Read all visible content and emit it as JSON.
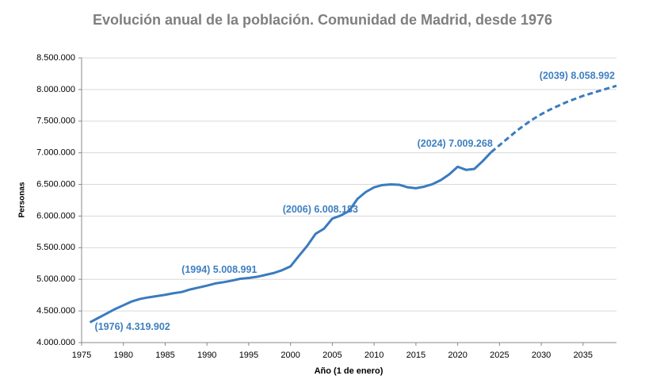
{
  "chart_data": {
    "type": "line",
    "title": "Evolución anual de la población. Comunidad de Madrid, desde 1976",
    "x_label": "Año (1 de enero)",
    "y_label": "Personas",
    "xlim": [
      1975,
      2039
    ],
    "xticks": [
      1975,
      1980,
      1985,
      1990,
      1995,
      2000,
      2005,
      2010,
      2015,
      2020,
      2025,
      2030,
      2035
    ],
    "ylim": [
      4000000,
      8500000
    ],
    "yticks": [
      {
        "value": 4000000,
        "label": "4.000.000"
      },
      {
        "value": 4500000,
        "label": "4.500.000"
      },
      {
        "value": 5000000,
        "label": "5.000.000"
      },
      {
        "value": 5500000,
        "label": "5.500.000"
      },
      {
        "value": 6000000,
        "label": "6.000.000"
      },
      {
        "value": 6500000,
        "label": "6.500.000"
      },
      {
        "value": 7000000,
        "label": "7.000.000"
      },
      {
        "value": 7500000,
        "label": "7.500.000"
      },
      {
        "value": 8000000,
        "label": "8.000.000"
      },
      {
        "value": 8500000,
        "label": "8.500.000"
      }
    ],
    "grid": true,
    "series": [
      {
        "color": "#3a7bbf",
        "style": "solid",
        "x": [
          1976,
          1977,
          1978,
          1979,
          1980,
          1981,
          1982,
          1983,
          1984,
          1985,
          1986,
          1987,
          1988,
          1989,
          1990,
          1991,
          1992,
          1993,
          1994,
          1995,
          1996,
          1997,
          1998,
          1999,
          2000,
          2001,
          2002,
          2003,
          2004,
          2005,
          2006,
          2007,
          2008,
          2009,
          2010,
          2011,
          2012,
          2013,
          2014,
          2015,
          2016,
          2017,
          2018,
          2019,
          2020,
          2021,
          2022,
          2023,
          2024
        ],
        "values": [
          4319902,
          4390000,
          4460000,
          4530000,
          4590000,
          4650000,
          4690000,
          4715000,
          4735000,
          4755000,
          4780000,
          4800000,
          4840000,
          4870000,
          4900000,
          4935000,
          4955000,
          4980000,
          5008991,
          5022000,
          5040000,
          5070000,
          5100000,
          5145000,
          5205000,
          5370000,
          5530000,
          5720000,
          5800000,
          5960000,
          6008183,
          6080000,
          6270000,
          6380000,
          6455000,
          6490000,
          6500000,
          6495000,
          6455000,
          6440000,
          6465000,
          6505000,
          6570000,
          6660000,
          6780000,
          6730000,
          6745000,
          6870000,
          7009268
        ]
      },
      {
        "color": "#3a7bbf",
        "style": "dashed",
        "x": [
          2024,
          2025,
          2026,
          2027,
          2028,
          2029,
          2030,
          2031,
          2032,
          2033,
          2034,
          2035,
          2036,
          2037,
          2038,
          2039
        ],
        "values": [
          7009268,
          7120000,
          7230000,
          7340000,
          7440000,
          7530000,
          7610000,
          7680000,
          7740000,
          7800000,
          7850000,
          7900000,
          7940000,
          7980000,
          8020000,
          8058992
        ]
      }
    ],
    "annotations": [
      {
        "x": 1976,
        "value": 4319902,
        "label": "(1976) 4.319.902"
      },
      {
        "x": 1994,
        "value": 5008991,
        "label": "(1994) 5.008.991"
      },
      {
        "x": 2006,
        "value": 6008183,
        "label": "(2006) 6.008.183"
      },
      {
        "x": 2024,
        "value": 7009268,
        "label": "(2024) 7.009.268"
      },
      {
        "x": 2039,
        "value": 8058992,
        "label": "(2039) 8.058.992"
      }
    ]
  }
}
